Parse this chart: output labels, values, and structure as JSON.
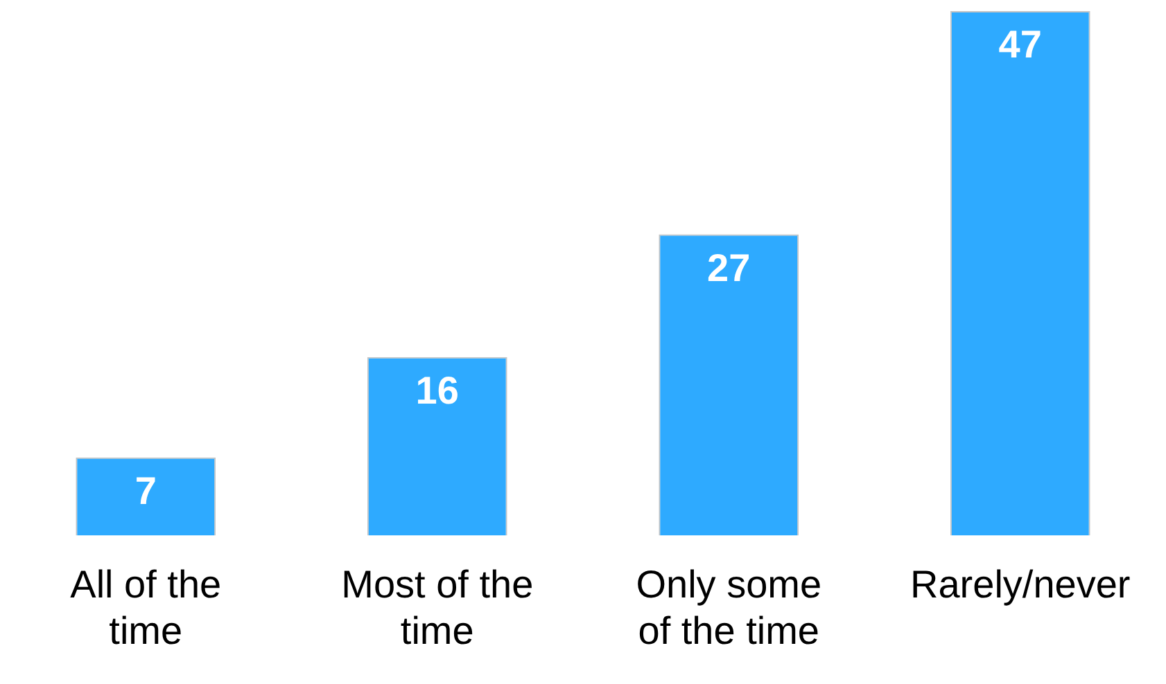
{
  "chart_data": {
    "type": "bar",
    "categories": [
      "All of the time",
      "Most of the time",
      "Only some of the time",
      "Rarely/never"
    ],
    "values": [
      7,
      16,
      27,
      47
    ],
    "color": "#2eaaff",
    "ylim": [
      0,
      47
    ],
    "data_labels": true,
    "grid": false,
    "legend": false,
    "tick_labels": "x"
  }
}
